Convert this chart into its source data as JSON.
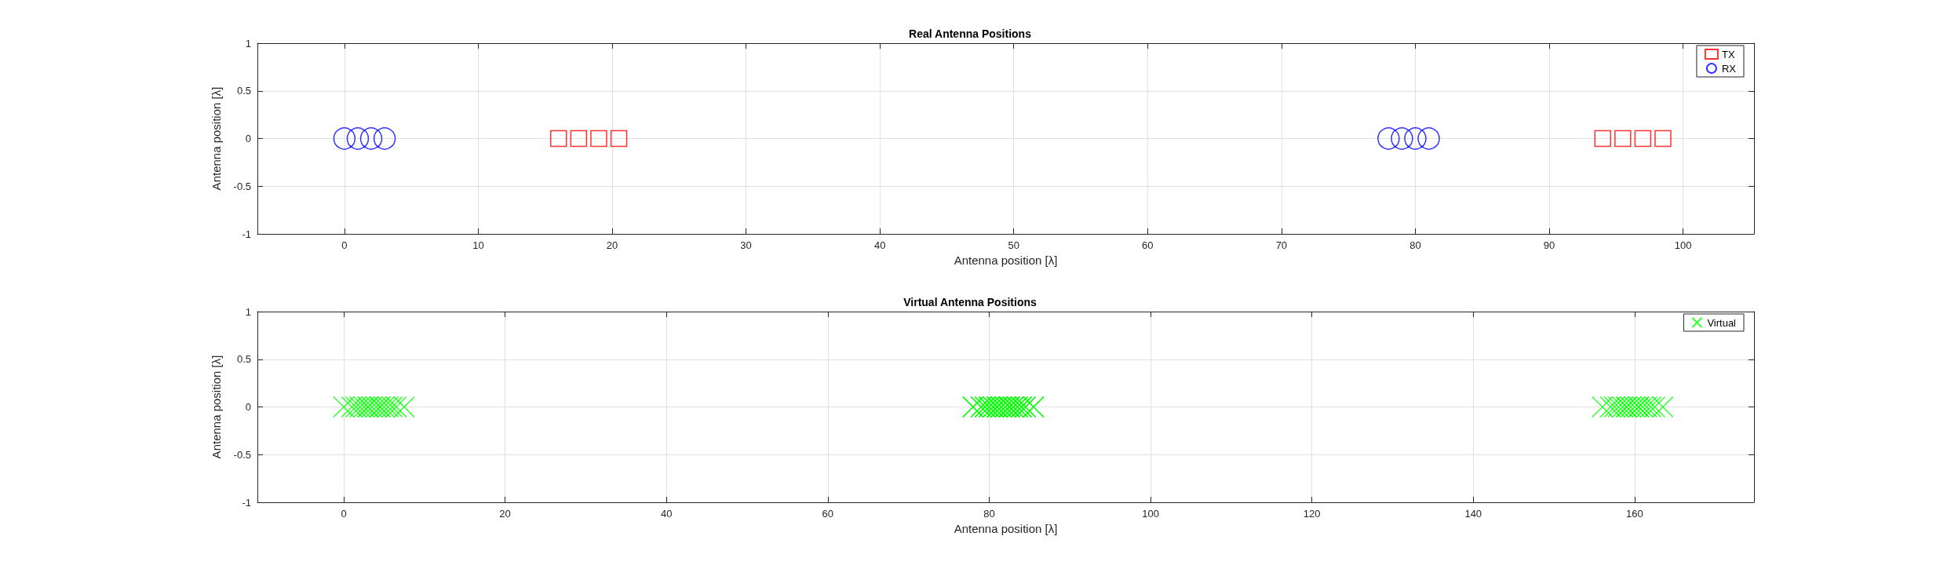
{
  "chart_data": [
    {
      "type": "scatter",
      "title": "Real Antenna Positions",
      "xlabel": "Antenna position [λ]",
      "ylabel": "Antenna position [λ]",
      "xlim": [
        -6.5,
        105.3
      ],
      "xticks": [
        0,
        10,
        20,
        30,
        40,
        50,
        60,
        70,
        80,
        90,
        100
      ],
      "ylim": [
        -1,
        1
      ],
      "yticks": [
        -1,
        -0.5,
        0,
        0.5,
        1
      ],
      "grid": true,
      "legend": "top right",
      "series": [
        {
          "name": "TX",
          "color": "#ff0000",
          "marker": "square",
          "x": [
            16,
            17.5,
            19,
            20.5,
            94,
            95.5,
            97,
            98.5
          ],
          "values": [
            0,
            0,
            0,
            0,
            0,
            0,
            0,
            0
          ]
        },
        {
          "name": "RX",
          "color": "#0000ff",
          "marker": "circle",
          "x": [
            0,
            1,
            2,
            3,
            78,
            79,
            80,
            81
          ],
          "values": [
            0,
            0,
            0,
            0,
            0,
            0,
            0,
            0
          ]
        }
      ]
    },
    {
      "type": "scatter",
      "title": "Virtual Antenna Positions",
      "xlabel": "Antenna position [λ]",
      "ylabel": "Antenna position [λ]",
      "xlim": [
        -10.7,
        174.8
      ],
      "xticks": [
        0,
        20,
        40,
        60,
        80,
        100,
        120,
        140,
        160
      ],
      "ylim": [
        -1,
        1
      ],
      "yticks": [
        -1,
        -0.5,
        0,
        0.5,
        1
      ],
      "grid": true,
      "legend": "top right",
      "series": [
        {
          "name": "Virtual",
          "color": "#00ff00",
          "marker": "cross",
          "x": [
            0,
            1,
            2,
            3,
            1.5,
            2.5,
            3.5,
            4.5,
            3,
            4,
            5,
            6,
            4.5,
            5.5,
            6.5,
            7.5,
            78,
            79,
            80,
            81,
            79.5,
            80.5,
            81.5,
            82.5,
            81,
            82,
            83,
            84,
            82.5,
            83.5,
            84.5,
            85.5,
            78,
            79,
            80,
            81,
            79.5,
            80.5,
            81.5,
            82.5,
            81,
            82,
            83,
            84,
            82.5,
            83.5,
            84.5,
            85.5,
            156,
            157,
            158,
            159,
            157.5,
            158.5,
            159.5,
            160.5,
            159,
            160,
            161,
            162,
            160.5,
            161.5,
            162.5,
            163.5
          ],
          "values": [
            0,
            0,
            0,
            0,
            0,
            0,
            0,
            0,
            0,
            0,
            0,
            0,
            0,
            0,
            0,
            0,
            0,
            0,
            0,
            0,
            0,
            0,
            0,
            0,
            0,
            0,
            0,
            0,
            0,
            0,
            0,
            0,
            0,
            0,
            0,
            0,
            0,
            0,
            0,
            0,
            0,
            0,
            0,
            0,
            0,
            0,
            0,
            0,
            0,
            0,
            0,
            0,
            0,
            0,
            0,
            0,
            0,
            0,
            0,
            0,
            0,
            0,
            0,
            0
          ]
        }
      ]
    }
  ]
}
